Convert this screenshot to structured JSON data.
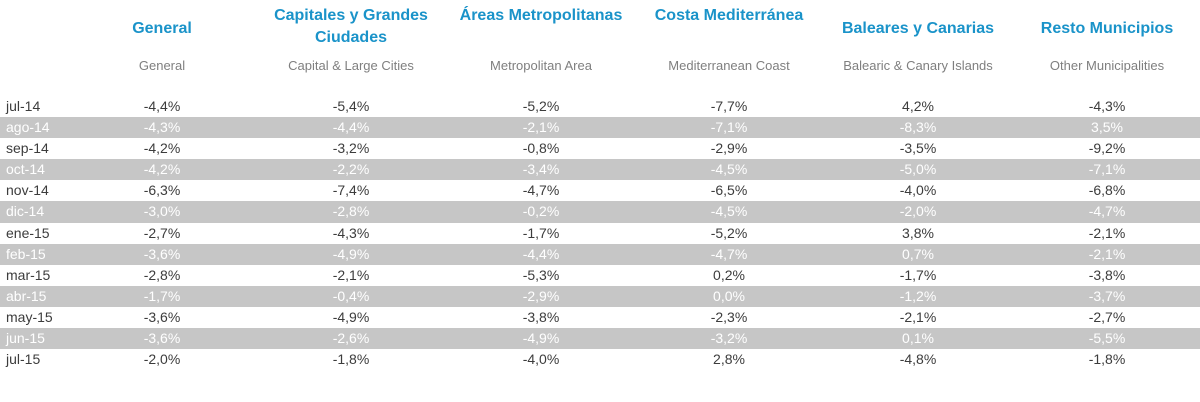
{
  "chart_data": {
    "type": "table",
    "columns": [
      {
        "title": "General",
        "subtitle": "General"
      },
      {
        "title": "Capitales y Grandes Ciudades",
        "subtitle": "Capital & Large Cities"
      },
      {
        "title": "Áreas Metropolitanas",
        "subtitle": "Metropolitan Area"
      },
      {
        "title": "Costa Mediterránea",
        "subtitle": "Mediterranean Coast"
      },
      {
        "title": "Baleares y Canarias",
        "subtitle": "Balearic & Canary Islands"
      },
      {
        "title": "Resto Municipios",
        "subtitle": "Other Municipalities"
      }
    ],
    "rows": [
      {
        "month": "jul-14",
        "values": [
          "-4,4%",
          "-5,4%",
          "-5,2%",
          "-7,7%",
          "4,2%",
          "-4,3%"
        ]
      },
      {
        "month": "ago-14",
        "values": [
          "-4,3%",
          "-4,4%",
          "-2,1%",
          "-7,1%",
          "-8,3%",
          "3,5%"
        ]
      },
      {
        "month": "sep-14",
        "values": [
          "-4,2%",
          "-3,2%",
          "-0,8%",
          "-2,9%",
          "-3,5%",
          "-9,2%"
        ]
      },
      {
        "month": "oct-14",
        "values": [
          "-4,2%",
          "-2,2%",
          "-3,4%",
          "-4,5%",
          "-5,0%",
          "-7,1%"
        ]
      },
      {
        "month": "nov-14",
        "values": [
          "-6,3%",
          "-7,4%",
          "-4,7%",
          "-6,5%",
          "-4,0%",
          "-6,8%"
        ]
      },
      {
        "month": "dic-14",
        "values": [
          "-3,0%",
          "-2,8%",
          "-0,2%",
          "-4,5%",
          "-2,0%",
          "-4,7%"
        ]
      },
      {
        "month": "ene-15",
        "values": [
          "-2,7%",
          "-4,3%",
          "-1,7%",
          "-5,2%",
          "3,8%",
          "-2,1%"
        ]
      },
      {
        "month": "feb-15",
        "values": [
          "-3,6%",
          "-4,9%",
          "-4,4%",
          "-4,7%",
          "0,7%",
          "-2,1%"
        ]
      },
      {
        "month": "mar-15",
        "values": [
          "-2,8%",
          "-2,1%",
          "-5,3%",
          "0,2%",
          "-1,7%",
          "-3,8%"
        ]
      },
      {
        "month": "abr-15",
        "values": [
          "-1,7%",
          "-0,4%",
          "-2,9%",
          "0,0%",
          "-1,2%",
          "-3,7%"
        ]
      },
      {
        "month": "may-15",
        "values": [
          "-3,6%",
          "-4,9%",
          "-3,8%",
          "-2,3%",
          "-2,1%",
          "-2,7%"
        ]
      },
      {
        "month": "jun-15",
        "values": [
          "-3,6%",
          "-2,6%",
          "-4,9%",
          "-3,2%",
          "0,1%",
          "-5,5%"
        ]
      },
      {
        "month": "jul-15",
        "values": [
          "-2,0%",
          "-1,8%",
          "-4,0%",
          "2,8%",
          "-4,8%",
          "-1,8%"
        ]
      }
    ]
  }
}
